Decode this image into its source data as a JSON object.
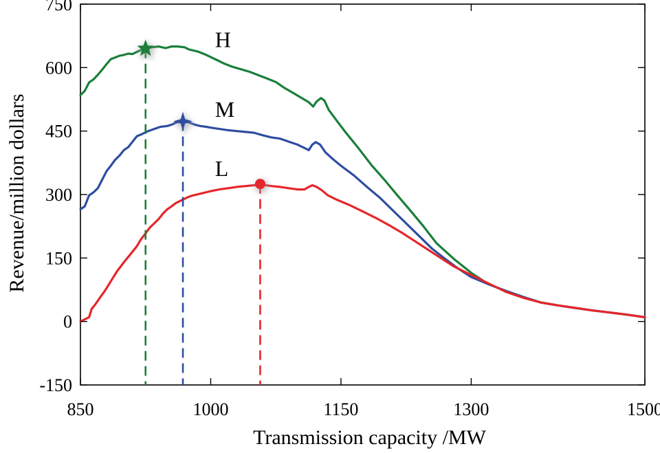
{
  "chart_data": {
    "type": "line",
    "title": "",
    "xlabel": "Transmission capacity /MW",
    "ylabel": "Revenue/million dollars",
    "xlim": [
      850,
      1500
    ],
    "ylim": [
      -150,
      750
    ],
    "x_ticks": [
      850,
      1000,
      1150,
      1300,
      1500
    ],
    "y_ticks": [
      -150,
      0,
      150,
      300,
      450,
      600,
      750
    ],
    "grid": false,
    "series": [
      {
        "name": "H",
        "color": "#1a7f3a",
        "points": [
          [
            850,
            535
          ],
          [
            855,
            545
          ],
          [
            860,
            565
          ],
          [
            865,
            572
          ],
          [
            870,
            583
          ],
          [
            875,
            595
          ],
          [
            880,
            608
          ],
          [
            885,
            620
          ],
          [
            890,
            624
          ],
          [
            895,
            628
          ],
          [
            900,
            630
          ],
          [
            905,
            633
          ],
          [
            910,
            632
          ],
          [
            918,
            640
          ],
          [
            925,
            645
          ],
          [
            932,
            648
          ],
          [
            940,
            650
          ],
          [
            948,
            646
          ],
          [
            955,
            650
          ],
          [
            962,
            650
          ],
          [
            970,
            648
          ],
          [
            975,
            643
          ],
          [
            985,
            638
          ],
          [
            995,
            630
          ],
          [
            1005,
            620
          ],
          [
            1015,
            610
          ],
          [
            1025,
            602
          ],
          [
            1035,
            596
          ],
          [
            1045,
            590
          ],
          [
            1055,
            582
          ],
          [
            1065,
            574
          ],
          [
            1075,
            566
          ],
          [
            1085,
            552
          ],
          [
            1095,
            540
          ],
          [
            1105,
            528
          ],
          [
            1113,
            518
          ],
          [
            1118,
            508
          ],
          [
            1122,
            520
          ],
          [
            1127,
            528
          ],
          [
            1131,
            522
          ],
          [
            1136,
            500
          ],
          [
            1145,
            475
          ],
          [
            1155,
            448
          ],
          [
            1170,
            410
          ],
          [
            1185,
            370
          ],
          [
            1200,
            335
          ],
          [
            1215,
            298
          ],
          [
            1230,
            262
          ],
          [
            1245,
            225
          ],
          [
            1260,
            185
          ],
          [
            1280,
            148
          ],
          [
            1300,
            115
          ],
          [
            1320,
            88
          ],
          [
            1340,
            72
          ],
          [
            1360,
            58
          ],
          [
            1380,
            45
          ],
          [
            1400,
            38
          ],
          [
            1420,
            32
          ],
          [
            1440,
            26
          ],
          [
            1460,
            21
          ],
          [
            1480,
            16
          ],
          [
            1500,
            10
          ]
        ]
      },
      {
        "name": "M",
        "color": "#2e4da0",
        "points": [
          [
            850,
            265
          ],
          [
            855,
            272
          ],
          [
            860,
            298
          ],
          [
            865,
            305
          ],
          [
            870,
            315
          ],
          [
            875,
            335
          ],
          [
            880,
            355
          ],
          [
            885,
            368
          ],
          [
            890,
            382
          ],
          [
            895,
            392
          ],
          [
            900,
            405
          ],
          [
            905,
            412
          ],
          [
            910,
            425
          ],
          [
            915,
            438
          ],
          [
            920,
            442
          ],
          [
            928,
            450
          ],
          [
            935,
            455
          ],
          [
            942,
            460
          ],
          [
            950,
            462
          ],
          [
            955,
            465
          ],
          [
            960,
            470
          ],
          [
            965,
            472
          ],
          [
            970,
            473
          ],
          [
            975,
            470
          ],
          [
            982,
            465
          ],
          [
            988,
            462
          ],
          [
            995,
            460
          ],
          [
            1000,
            458
          ],
          [
            1010,
            455
          ],
          [
            1020,
            452
          ],
          [
            1030,
            450
          ],
          [
            1040,
            448
          ],
          [
            1050,
            446
          ],
          [
            1060,
            440
          ],
          [
            1070,
            435
          ],
          [
            1080,
            432
          ],
          [
            1090,
            425
          ],
          [
            1100,
            418
          ],
          [
            1108,
            410
          ],
          [
            1113,
            405
          ],
          [
            1117,
            418
          ],
          [
            1121,
            424
          ],
          [
            1126,
            418
          ],
          [
            1132,
            400
          ],
          [
            1140,
            385
          ],
          [
            1150,
            368
          ],
          [
            1165,
            345
          ],
          [
            1180,
            318
          ],
          [
            1195,
            292
          ],
          [
            1210,
            262
          ],
          [
            1225,
            232
          ],
          [
            1240,
            202
          ],
          [
            1255,
            172
          ],
          [
            1270,
            148
          ],
          [
            1285,
            125
          ],
          [
            1300,
            105
          ],
          [
            1320,
            88
          ],
          [
            1340,
            72
          ],
          [
            1360,
            58
          ],
          [
            1380,
            45
          ],
          [
            1400,
            38
          ],
          [
            1420,
            32
          ],
          [
            1440,
            26
          ],
          [
            1460,
            21
          ],
          [
            1480,
            16
          ],
          [
            1500,
            10
          ]
        ]
      },
      {
        "name": "L",
        "color": "#e5262b",
        "points": [
          [
            850,
            0
          ],
          [
            855,
            5
          ],
          [
            860,
            10
          ],
          [
            863,
            30
          ],
          [
            867,
            40
          ],
          [
            872,
            55
          ],
          [
            878,
            72
          ],
          [
            885,
            95
          ],
          [
            892,
            118
          ],
          [
            900,
            140
          ],
          [
            908,
            160
          ],
          [
            915,
            178
          ],
          [
            920,
            195
          ],
          [
            925,
            208
          ],
          [
            930,
            222
          ],
          [
            935,
            232
          ],
          [
            940,
            242
          ],
          [
            945,
            255
          ],
          [
            950,
            265
          ],
          [
            955,
            272
          ],
          [
            960,
            280
          ],
          [
            965,
            285
          ],
          [
            970,
            290
          ],
          [
            975,
            295
          ],
          [
            980,
            298
          ],
          [
            990,
            303
          ],
          [
            1000,
            308
          ],
          [
            1010,
            312
          ],
          [
            1020,
            315
          ],
          [
            1030,
            318
          ],
          [
            1040,
            320
          ],
          [
            1050,
            322
          ],
          [
            1060,
            323
          ],
          [
            1070,
            320
          ],
          [
            1080,
            318
          ],
          [
            1090,
            315
          ],
          [
            1100,
            312
          ],
          [
            1108,
            312
          ],
          [
            1113,
            318
          ],
          [
            1117,
            322
          ],
          [
            1122,
            318
          ],
          [
            1128,
            310
          ],
          [
            1135,
            298
          ],
          [
            1145,
            288
          ],
          [
            1160,
            275
          ],
          [
            1175,
            260
          ],
          [
            1190,
            245
          ],
          [
            1205,
            228
          ],
          [
            1220,
            210
          ],
          [
            1235,
            190
          ],
          [
            1250,
            170
          ],
          [
            1265,
            150
          ],
          [
            1280,
            130
          ],
          [
            1300,
            110
          ],
          [
            1320,
            90
          ],
          [
            1340,
            70
          ],
          [
            1360,
            56
          ],
          [
            1380,
            45
          ],
          [
            1400,
            38
          ],
          [
            1420,
            32
          ],
          [
            1440,
            26
          ],
          [
            1460,
            21
          ],
          [
            1480,
            16
          ],
          [
            1500,
            10
          ]
        ]
      }
    ],
    "optima": [
      {
        "series": "H",
        "marker": "star5",
        "x": 925,
        "y": 645,
        "label_x": 1005,
        "label_y": 665
      },
      {
        "series": "M",
        "marker": "star4",
        "x": 968,
        "y": 473,
        "label_x": 1005,
        "label_y": 500
      },
      {
        "series": "L",
        "marker": "circle",
        "x": 1057,
        "y": 325,
        "label_x": 1005,
        "label_y": 360
      }
    ]
  }
}
